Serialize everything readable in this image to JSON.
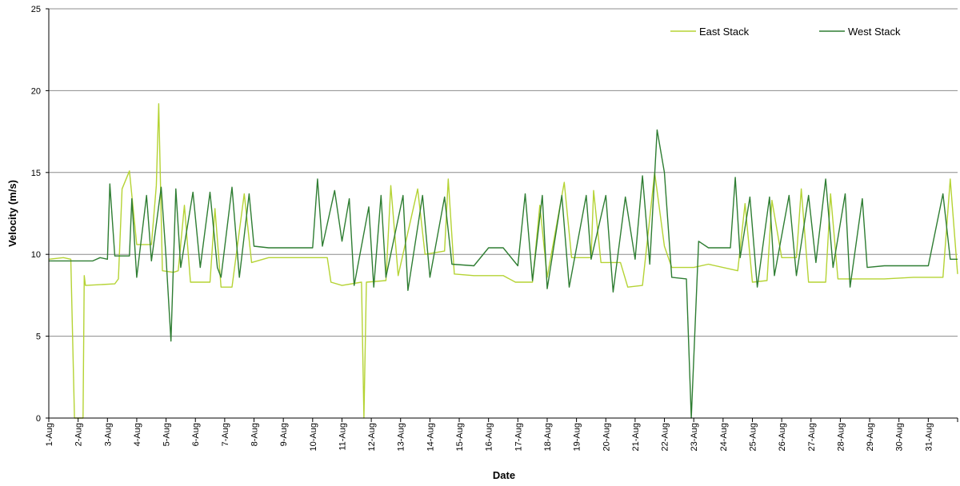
{
  "chart_data": {
    "type": "line",
    "title": "",
    "xlabel": "Date",
    "ylabel": "Velocity (m/s)",
    "ylim": [
      0,
      25
    ],
    "yticks": [
      0,
      5,
      10,
      15,
      20,
      25
    ],
    "xlim": [
      "2009-08-01",
      "2009-09-01"
    ],
    "x_tick_labels": [
      "1-Aug",
      "2-Aug",
      "3-Aug",
      "4-Aug",
      "5-Aug",
      "6-Aug",
      "7-Aug",
      "8-Aug",
      "9-Aug",
      "10-Aug",
      "11-Aug",
      "12-Aug",
      "13-Aug",
      "14-Aug",
      "15-Aug",
      "16-Aug",
      "17-Aug",
      "18-Aug",
      "19-Aug",
      "20-Aug",
      "21-Aug",
      "22-Aug",
      "23-Aug",
      "24-Aug",
      "25-Aug",
      "26-Aug",
      "27-Aug",
      "28-Aug",
      "29-Aug",
      "30-Aug",
      "31-Aug"
    ],
    "grid": "horizontal",
    "legend_position": "top-right",
    "series": [
      {
        "name": "East Stack",
        "color": "#b5d334",
        "points": [
          [
            "2009-08-01 00:00",
            9.7
          ],
          [
            "2009-08-01 12:00",
            9.8
          ],
          [
            "2009-08-01 18:00",
            9.7
          ],
          [
            "2009-08-01 21:00",
            0.0
          ],
          [
            "2009-08-02 04:00",
            0.0
          ],
          [
            "2009-08-02 05:00",
            8.7
          ],
          [
            "2009-08-02 06:00",
            8.1
          ],
          [
            "2009-08-03 06:00",
            8.2
          ],
          [
            "2009-08-03 09:00",
            8.5
          ],
          [
            "2009-08-03 12:00",
            14.0
          ],
          [
            "2009-08-03 18:00",
            15.1
          ],
          [
            "2009-08-04 00:00",
            10.6
          ],
          [
            "2009-08-04 12:00",
            10.6
          ],
          [
            "2009-08-04 16:00",
            14.2
          ],
          [
            "2009-08-04 18:00",
            19.2
          ],
          [
            "2009-08-04 21:00",
            9.0
          ],
          [
            "2009-08-05 06:00",
            8.9
          ],
          [
            "2009-08-05 10:00",
            9.0
          ],
          [
            "2009-08-05 15:00",
            13.0
          ],
          [
            "2009-08-05 20:00",
            8.3
          ],
          [
            "2009-08-06 12:00",
            8.3
          ],
          [
            "2009-08-06 16:00",
            12.8
          ],
          [
            "2009-08-06 21:00",
            8.0
          ],
          [
            "2009-08-07 06:00",
            8.0
          ],
          [
            "2009-08-07 16:00",
            13.7
          ],
          [
            "2009-08-07 22:00",
            9.5
          ],
          [
            "2009-08-08 12:00",
            9.8
          ],
          [
            "2009-08-09 12:00",
            9.8
          ],
          [
            "2009-08-10 12:00",
            9.8
          ],
          [
            "2009-08-10 15:00",
            8.3
          ],
          [
            "2009-08-11 00:00",
            8.1
          ],
          [
            "2009-08-11 16:00",
            8.3
          ],
          [
            "2009-08-11 18:00",
            0.0
          ],
          [
            "2009-08-11 20:00",
            8.3
          ],
          [
            "2009-08-12 12:00",
            8.4
          ],
          [
            "2009-08-12 16:00",
            14.2
          ],
          [
            "2009-08-12 22:00",
            8.7
          ],
          [
            "2009-08-13 14:00",
            14.0
          ],
          [
            "2009-08-13 20:00",
            10.0
          ],
          [
            "2009-08-14 12:00",
            10.2
          ],
          [
            "2009-08-14 15:00",
            14.6
          ],
          [
            "2009-08-14 20:00",
            8.8
          ],
          [
            "2009-08-15 12:00",
            8.7
          ],
          [
            "2009-08-16 12:00",
            8.7
          ],
          [
            "2009-08-16 22:00",
            8.3
          ],
          [
            "2009-08-17 12:00",
            8.3
          ],
          [
            "2009-08-17 18:00",
            13.0
          ],
          [
            "2009-08-18 00:00",
            8.6
          ],
          [
            "2009-08-18 14:00",
            14.4
          ],
          [
            "2009-08-18 20:00",
            9.8
          ],
          [
            "2009-08-19 12:00",
            9.8
          ],
          [
            "2009-08-19 14:00",
            13.9
          ],
          [
            "2009-08-19 20:00",
            9.5
          ],
          [
            "2009-08-20 12:00",
            9.5
          ],
          [
            "2009-08-20 18:00",
            8.0
          ],
          [
            "2009-08-21 06:00",
            8.1
          ],
          [
            "2009-08-21 12:00",
            12.2
          ],
          [
            "2009-08-21 16:00",
            15.0
          ],
          [
            "2009-08-22 00:00",
            10.5
          ],
          [
            "2009-08-22 06:00",
            9.2
          ],
          [
            "2009-08-23 00:00",
            9.2
          ],
          [
            "2009-08-23 12:00",
            9.4
          ],
          [
            "2009-08-24 12:00",
            9.0
          ],
          [
            "2009-08-24 18:00",
            13.1
          ],
          [
            "2009-08-25 00:00",
            8.3
          ],
          [
            "2009-08-25 12:00",
            8.4
          ],
          [
            "2009-08-25 16:00",
            13.3
          ],
          [
            "2009-08-26 00:00",
            9.8
          ],
          [
            "2009-08-26 12:00",
            9.8
          ],
          [
            "2009-08-26 16:00",
            14.0
          ],
          [
            "2009-08-26 22:00",
            8.3
          ],
          [
            "2009-08-27 12:00",
            8.3
          ],
          [
            "2009-08-27 16:00",
            13.7
          ],
          [
            "2009-08-27 22:00",
            8.5
          ],
          [
            "2009-08-28 12:00",
            8.5
          ],
          [
            "2009-08-29 12:00",
            8.5
          ],
          [
            "2009-08-30 12:00",
            8.6
          ],
          [
            "2009-08-31 12:00",
            8.6
          ],
          [
            "2009-08-31 18:00",
            14.6
          ],
          [
            "2009-09-01 00:00",
            8.8
          ]
        ]
      },
      {
        "name": "West Stack",
        "color": "#2e7d32",
        "points": [
          [
            "2009-08-01 00:00",
            9.6
          ],
          [
            "2009-08-02 12:00",
            9.6
          ],
          [
            "2009-08-02 18:00",
            9.8
          ],
          [
            "2009-08-03 00:00",
            9.7
          ],
          [
            "2009-08-03 02:00",
            14.3
          ],
          [
            "2009-08-03 06:00",
            9.9
          ],
          [
            "2009-08-03 18:00",
            9.9
          ],
          [
            "2009-08-03 20:00",
            13.4
          ],
          [
            "2009-08-04 00:00",
            8.6
          ],
          [
            "2009-08-04 08:00",
            13.6
          ],
          [
            "2009-08-04 12:00",
            9.6
          ],
          [
            "2009-08-04 20:00",
            14.1
          ],
          [
            "2009-08-05 00:00",
            9.8
          ],
          [
            "2009-08-05 04:00",
            4.7
          ],
          [
            "2009-08-05 08:00",
            14.0
          ],
          [
            "2009-08-05 12:00",
            9.2
          ],
          [
            "2009-08-05 22:00",
            13.8
          ],
          [
            "2009-08-06 04:00",
            9.2
          ],
          [
            "2009-08-06 12:00",
            13.8
          ],
          [
            "2009-08-06 18:00",
            9.2
          ],
          [
            "2009-08-06 21:00",
            8.6
          ],
          [
            "2009-08-07 06:00",
            14.1
          ],
          [
            "2009-08-07 12:00",
            8.6
          ],
          [
            "2009-08-07 20:00",
            13.7
          ],
          [
            "2009-08-08 00:00",
            10.5
          ],
          [
            "2009-08-08 12:00",
            10.4
          ],
          [
            "2009-08-09 12:00",
            10.4
          ],
          [
            "2009-08-10 00:00",
            10.4
          ],
          [
            "2009-08-10 04:00",
            14.6
          ],
          [
            "2009-08-10 08:00",
            10.5
          ],
          [
            "2009-08-10 18:00",
            13.9
          ],
          [
            "2009-08-11 00:00",
            10.8
          ],
          [
            "2009-08-11 06:00",
            13.4
          ],
          [
            "2009-08-11 10:00",
            8.1
          ],
          [
            "2009-08-11 22:00",
            12.9
          ],
          [
            "2009-08-12 02:00",
            8.0
          ],
          [
            "2009-08-12 08:00",
            13.6
          ],
          [
            "2009-08-12 12:00",
            8.6
          ],
          [
            "2009-08-13 02:00",
            13.6
          ],
          [
            "2009-08-13 06:00",
            7.8
          ],
          [
            "2009-08-13 18:00",
            13.6
          ],
          [
            "2009-08-14 00:00",
            8.6
          ],
          [
            "2009-08-14 12:00",
            13.5
          ],
          [
            "2009-08-14 18:00",
            9.4
          ],
          [
            "2009-08-15 12:00",
            9.3
          ],
          [
            "2009-08-16 00:00",
            10.4
          ],
          [
            "2009-08-16 12:00",
            10.4
          ],
          [
            "2009-08-17 00:00",
            9.3
          ],
          [
            "2009-08-17 06:00",
            13.7
          ],
          [
            "2009-08-17 12:00",
            8.4
          ],
          [
            "2009-08-17 20:00",
            13.6
          ],
          [
            "2009-08-18 00:00",
            7.9
          ],
          [
            "2009-08-18 12:00",
            13.6
          ],
          [
            "2009-08-18 18:00",
            8.0
          ],
          [
            "2009-08-19 08:00",
            13.6
          ],
          [
            "2009-08-19 12:00",
            9.7
          ],
          [
            "2009-08-20 00:00",
            13.6
          ],
          [
            "2009-08-20 06:00",
            7.7
          ],
          [
            "2009-08-20 16:00",
            13.5
          ],
          [
            "2009-08-21 00:00",
            9.7
          ],
          [
            "2009-08-21 06:00",
            14.8
          ],
          [
            "2009-08-21 12:00",
            9.4
          ],
          [
            "2009-08-21 18:00",
            17.6
          ],
          [
            "2009-08-22 00:00",
            15.0
          ],
          [
            "2009-08-22 06:00",
            8.6
          ],
          [
            "2009-08-22 18:00",
            8.5
          ],
          [
            "2009-08-22 22:00",
            0.0
          ],
          [
            "2009-08-23 04:00",
            10.8
          ],
          [
            "2009-08-23 12:00",
            10.4
          ],
          [
            "2009-08-24 06:00",
            10.4
          ],
          [
            "2009-08-24 10:00",
            14.7
          ],
          [
            "2009-08-24 14:00",
            9.8
          ],
          [
            "2009-08-24 22:00",
            13.5
          ],
          [
            "2009-08-25 04:00",
            8.0
          ],
          [
            "2009-08-25 14:00",
            13.5
          ],
          [
            "2009-08-25 18:00",
            8.7
          ],
          [
            "2009-08-26 06:00",
            13.6
          ],
          [
            "2009-08-26 12:00",
            8.7
          ],
          [
            "2009-08-26 22:00",
            13.6
          ],
          [
            "2009-08-27 04:00",
            9.5
          ],
          [
            "2009-08-27 12:00",
            14.6
          ],
          [
            "2009-08-27 18:00",
            9.2
          ],
          [
            "2009-08-28 04:00",
            13.7
          ],
          [
            "2009-08-28 08:00",
            8.0
          ],
          [
            "2009-08-28 18:00",
            13.4
          ],
          [
            "2009-08-28 22:00",
            9.2
          ],
          [
            "2009-08-29 12:00",
            9.3
          ],
          [
            "2009-08-30 12:00",
            9.3
          ],
          [
            "2009-08-31 00:00",
            9.3
          ],
          [
            "2009-08-31 12:00",
            13.7
          ],
          [
            "2009-08-31 18:00",
            9.7
          ],
          [
            "2009-09-01 00:00",
            9.7
          ]
        ]
      }
    ]
  }
}
